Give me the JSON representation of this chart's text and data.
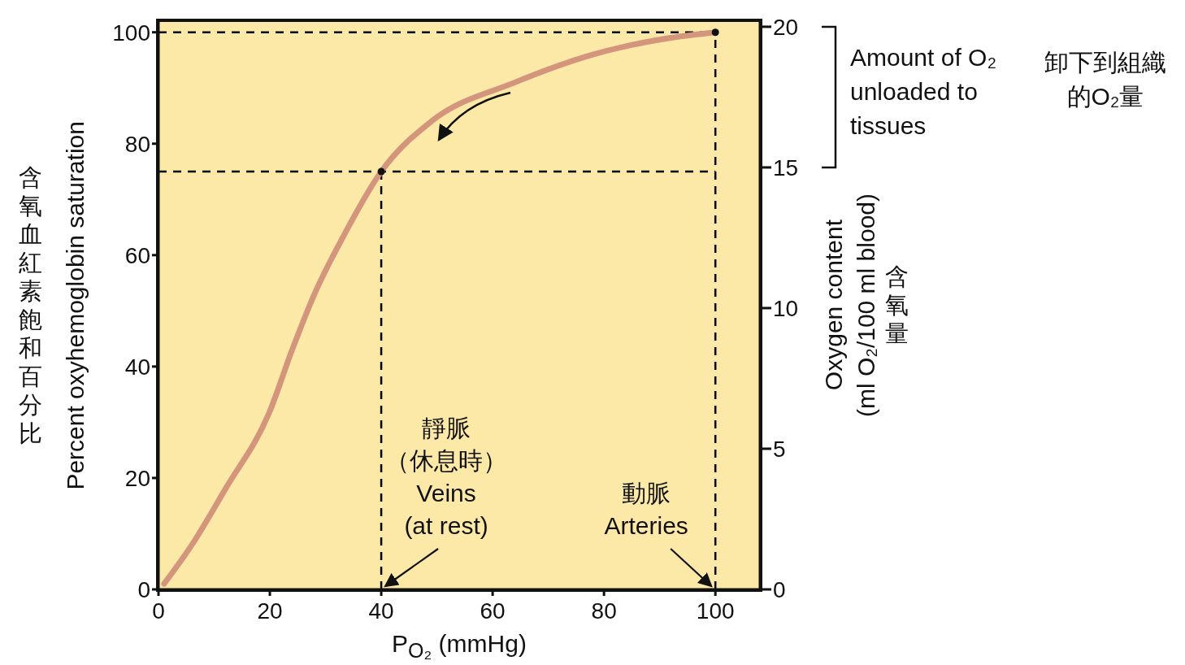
{
  "chart_data": {
    "type": "line",
    "xlabel": "P$_{O₂}$ (mmHg)",
    "ylabel": "含氧血紅素飽和百分比\nPercent oxyhemoglobin saturation",
    "y2label": "Oxygen content\n(ml O₂/100 ml blood)\n含氧量",
    "x": [
      1,
      6,
      12,
      20,
      24,
      28,
      33,
      40,
      49,
      64,
      78,
      92,
      100
    ],
    "series": [
      {
        "color": "#d4957d",
        "values": [
          1,
          8,
          18,
          32,
          43,
          53,
          63,
          75,
          84,
          91,
          96,
          99,
          100
        ]
      },
      {
        "type": "scatter",
        "x": [
          40,
          100
        ],
        "color": "#111111",
        "marker": "circle",
        "values": [
          75,
          100
        ]
      }
    ],
    "xlim": [
      0,
      108
    ],
    "xticks": [
      0,
      20,
      40,
      60,
      80,
      100
    ],
    "ylim": [
      0,
      102
    ],
    "yticks": [
      0,
      20,
      40,
      60,
      80,
      100
    ],
    "y2lim": [
      0,
      20.2
    ],
    "y2ticks": [
      0,
      5,
      10,
      15,
      20
    ],
    "ref_lines": [
      {
        "axis": "y",
        "value": 100,
        "color": "#000000",
        "line_style": "dashed"
      },
      {
        "axis": "y",
        "value": 75,
        "color": "#000000",
        "line_style": "dashed"
      },
      {
        "axis": "x",
        "value": 40,
        "color": "#000000",
        "line_style": "dashed"
      },
      {
        "axis": "x",
        "value": 100,
        "color": "#000000",
        "line_style": "dashed"
      }
    ],
    "annotations": [
      {
        "text": "靜脈（休息時）\nVeins\n(at rest)",
        "x": 40,
        "y": 0
      },
      {
        "text": "動脈\nArteries",
        "x": 100,
        "y": 0
      },
      "Amount of O₂\nunloaded to\ntissues",
      "卸下到組織的O₂量"
    ],
    "grid": false,
    "legend": false
  }
}
